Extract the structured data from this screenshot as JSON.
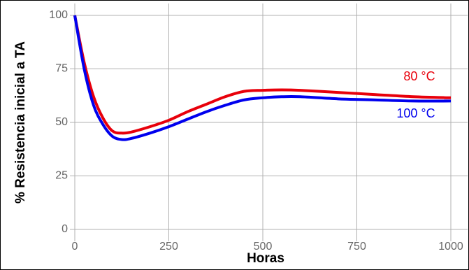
{
  "chart_data": {
    "type": "line",
    "x": [
      0,
      25,
      50,
      75,
      100,
      125,
      150,
      200,
      250,
      300,
      350,
      400,
      450,
      500,
      550,
      600,
      700,
      800,
      900,
      1000
    ],
    "series": [
      {
        "name": "80 °C",
        "color": "#e8000b",
        "values": [
          100,
          78,
          62,
          52,
          46,
          45,
          45.5,
          48,
          51,
          55,
          58.5,
          62,
          64.5,
          65,
          65.2,
          65,
          64,
          63,
          62,
          61.5
        ]
      },
      {
        "name": "100 °C",
        "color": "#0000ee",
        "values": [
          100,
          75,
          58,
          49,
          43.5,
          42,
          42.5,
          45,
          48,
          51.5,
          55,
          58,
          60.5,
          61.5,
          62,
          62,
          61,
          60.5,
          60,
          60
        ]
      }
    ],
    "xlabel": "Horas",
    "ylabel": "% Resistencia inicial a TA",
    "xlim": [
      0,
      1000
    ],
    "xticks": [
      0,
      250,
      500,
      750,
      1000
    ],
    "ylim": [
      0,
      100
    ],
    "yticks": [
      0,
      25,
      50,
      75,
      100
    ],
    "grid": true
  }
}
